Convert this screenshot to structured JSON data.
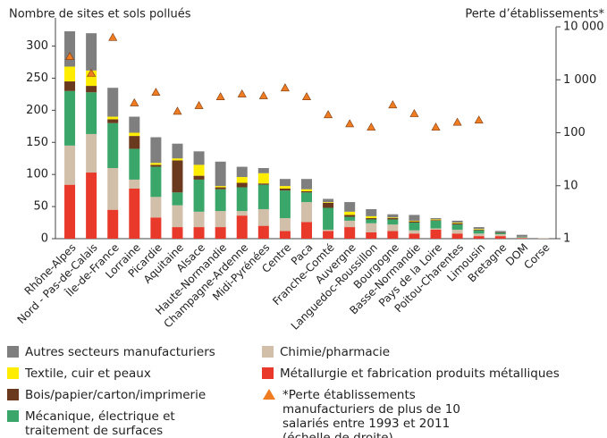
{
  "chart_data": {
    "type": "bar",
    "stacked": true,
    "y_title": "Nombre de sites et sols pollués",
    "y2_title": "Perte d’établissements*",
    "categories": [
      "Rhône-Alpes",
      "Nord - Pas-de-Calais",
      "Île-de-France",
      "Lorraine",
      "Picardie",
      "Aquitaine",
      "Alsace",
      "Haute-Normandie",
      "Champagne-Ardenne",
      "Midi-Pyrénées",
      "Centre",
      "Paca",
      "Franche-Comté",
      "Auvergne",
      "Languedoc-Roussillon",
      "Bourgogne",
      "Basse-Normandie",
      "Pays de la Loire",
      "Poitou-Charentes",
      "Limousin",
      "Bretagne",
      "DOM",
      "Corse"
    ],
    "series": [
      {
        "name": "Métallurgie et fabrication produits métalliques",
        "color": "#e8392b",
        "values": [
          84,
          103,
          45,
          78,
          33,
          18,
          18,
          18,
          36,
          20,
          12,
          26,
          12,
          18,
          10,
          12,
          8,
          14,
          8,
          4,
          4,
          1,
          0
        ]
      },
      {
        "name": "Chimie/pharmacie",
        "color": "#d2bfa9",
        "values": [
          61,
          60,
          65,
          14,
          32,
          34,
          24,
          25,
          7,
          26,
          20,
          31,
          2,
          10,
          14,
          10,
          5,
          2,
          6,
          4,
          3,
          1,
          1
        ]
      },
      {
        "name": "Mécanique, électrique et traitement de surfaces",
        "color": "#3aa66a",
        "values": [
          85,
          65,
          70,
          48,
          47,
          20,
          50,
          34,
          37,
          38,
          43,
          15,
          34,
          6,
          6,
          8,
          12,
          12,
          8,
          5,
          2,
          1,
          0
        ]
      },
      {
        "name": "Bois/papier/carton/imprimerie",
        "color": "#6b3a1e",
        "values": [
          15,
          10,
          6,
          20,
          3,
          50,
          6,
          3,
          7,
          2,
          3,
          2,
          8,
          3,
          2,
          2,
          2,
          1,
          2,
          1,
          1,
          0,
          0
        ]
      },
      {
        "name": "Textile, cuir et peaux",
        "color": "#ffed00",
        "values": [
          23,
          24,
          4,
          5,
          3,
          3,
          17,
          2,
          9,
          16,
          4,
          3,
          1,
          5,
          3,
          1,
          1,
          1,
          1,
          1,
          0,
          0,
          0
        ]
      },
      {
        "name": "Autres secteurs manufacturiers",
        "color": "#7f7f7f",
        "values": [
          55,
          58,
          45,
          25,
          40,
          23,
          21,
          38,
          16,
          8,
          11,
          16,
          5,
          15,
          11,
          5,
          9,
          2,
          3,
          3,
          2,
          3,
          0
        ]
      },
      {
        "name": "*Perte établissements manufacturiers de plus de 10 salariés entre 1993 et 2011 (échelle de droite)",
        "color": "#f07c22",
        "axis": "y2",
        "marker": "triangle",
        "values": [
          2700,
          1300,
          6200,
          360,
          570,
          250,
          320,
          470,
          530,
          490,
          690,
          470,
          215,
          145,
          125,
          330,
          225,
          125,
          155,
          170,
          null,
          null,
          null
        ]
      }
    ],
    "ylim": [
      0,
      330
    ],
    "yticks": [
      0,
      50,
      100,
      150,
      200,
      250,
      300
    ],
    "y2lim": [
      1,
      10000
    ],
    "y2log": true,
    "y2ticks": [
      1,
      10,
      100,
      {
        "value": 1000,
        "label": "1 000"
      },
      {
        "value": 10000,
        "label": "10 000"
      }
    ]
  }
}
